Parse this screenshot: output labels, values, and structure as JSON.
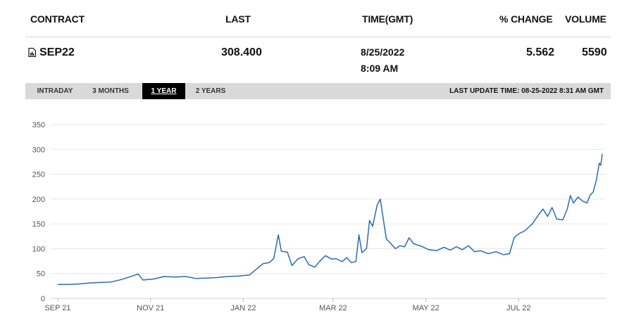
{
  "headers": {
    "contract": "CONTRACT",
    "last": "LAST",
    "time": "TIME(GMT)",
    "change": "% CHANGE",
    "volume": "VOLUME"
  },
  "row": {
    "contract": "SEP22",
    "last": "308.400",
    "date": "8/25/2022",
    "time": "8:09 AM",
    "change": "5.562",
    "volume": "5590",
    "icon": "document-icon"
  },
  "tabs": [
    "INTRADAY",
    "3 MONTHS",
    "1 YEAR",
    "2 YEARS"
  ],
  "active_tab": "1 YEAR",
  "last_update": "LAST UPDATE TIME: 08-25-2022 8:31 AM GMT",
  "colors": {
    "line": "#2b6cb0",
    "grid": "#e6e6e6",
    "tabbar": "#d9d9d9"
  },
  "chart_data": {
    "type": "line",
    "title": "",
    "xlabel": "",
    "ylabel": "",
    "ylim": [
      0,
      350
    ],
    "y_ticks": [
      0,
      50,
      100,
      150,
      200,
      250,
      300,
      350
    ],
    "x_ticks": [
      {
        "label": "SEP 21",
        "date": "2021-09-01"
      },
      {
        "label": "NOV 21",
        "date": "2021-11-01"
      },
      {
        "label": "JAN 22",
        "date": "2022-01-01"
      },
      {
        "label": "MAR 22",
        "date": "2022-03-01"
      },
      {
        "label": "MAY 22",
        "date": "2022-05-01"
      },
      {
        "label": "JUL 22",
        "date": "2022-07-01"
      }
    ],
    "grid": true,
    "series": [
      {
        "name": "",
        "points": [
          [
            "2021-09-01",
            28
          ],
          [
            "2021-09-08",
            28
          ],
          [
            "2021-09-15",
            29
          ],
          [
            "2021-09-22",
            31
          ],
          [
            "2021-09-29",
            32
          ],
          [
            "2021-10-06",
            33
          ],
          [
            "2021-10-13",
            38
          ],
          [
            "2021-10-20",
            45
          ],
          [
            "2021-10-24",
            49
          ],
          [
            "2021-10-27",
            37
          ],
          [
            "2021-11-03",
            39
          ],
          [
            "2021-11-10",
            44
          ],
          [
            "2021-11-17",
            43
          ],
          [
            "2021-11-24",
            44
          ],
          [
            "2021-12-01",
            40
          ],
          [
            "2021-12-08",
            41
          ],
          [
            "2021-12-15",
            42
          ],
          [
            "2021-12-22",
            44
          ],
          [
            "2021-12-29",
            45
          ],
          [
            "2022-01-05",
            47
          ],
          [
            "2022-01-10",
            60
          ],
          [
            "2022-01-14",
            70
          ],
          [
            "2022-01-18",
            72
          ],
          [
            "2022-01-21",
            80
          ],
          [
            "2022-01-24",
            128
          ],
          [
            "2022-01-26",
            95
          ],
          [
            "2022-01-30",
            93
          ],
          [
            "2022-02-02",
            66
          ],
          [
            "2022-02-06",
            80
          ],
          [
            "2022-02-10",
            84
          ],
          [
            "2022-02-13",
            68
          ],
          [
            "2022-02-17",
            63
          ],
          [
            "2022-02-20",
            74
          ],
          [
            "2022-02-24",
            86
          ],
          [
            "2022-02-28",
            79
          ],
          [
            "2022-03-03",
            80
          ],
          [
            "2022-03-07",
            74
          ],
          [
            "2022-03-10",
            82
          ],
          [
            "2022-03-13",
            72
          ],
          [
            "2022-03-16",
            74
          ],
          [
            "2022-03-18",
            128
          ],
          [
            "2022-03-20",
            92
          ],
          [
            "2022-03-23",
            100
          ],
          [
            "2022-03-25",
            157
          ],
          [
            "2022-03-27",
            145
          ],
          [
            "2022-03-30",
            188
          ],
          [
            "2022-04-01",
            200
          ],
          [
            "2022-04-03",
            160
          ],
          [
            "2022-04-05",
            120
          ],
          [
            "2022-04-08",
            110
          ],
          [
            "2022-04-11",
            100
          ],
          [
            "2022-04-14",
            106
          ],
          [
            "2022-04-17",
            104
          ],
          [
            "2022-04-20",
            122
          ],
          [
            "2022-04-23",
            110
          ],
          [
            "2022-04-28",
            105
          ],
          [
            "2022-05-03",
            98
          ],
          [
            "2022-05-08",
            96
          ],
          [
            "2022-05-13",
            103
          ],
          [
            "2022-05-17",
            97
          ],
          [
            "2022-05-21",
            104
          ],
          [
            "2022-05-25",
            98
          ],
          [
            "2022-05-29",
            106
          ],
          [
            "2022-06-02",
            94
          ],
          [
            "2022-06-06",
            96
          ],
          [
            "2022-06-11",
            90
          ],
          [
            "2022-06-16",
            94
          ],
          [
            "2022-06-21",
            88
          ],
          [
            "2022-06-25",
            90
          ],
          [
            "2022-06-28",
            122
          ],
          [
            "2022-07-01",
            130
          ],
          [
            "2022-07-05",
            136
          ],
          [
            "2022-07-10",
            150
          ],
          [
            "2022-07-14",
            168
          ],
          [
            "2022-07-17",
            180
          ],
          [
            "2022-07-20",
            165
          ],
          [
            "2022-07-23",
            183
          ],
          [
            "2022-07-26",
            160
          ],
          [
            "2022-07-30",
            158
          ],
          [
            "2022-08-02",
            180
          ],
          [
            "2022-08-04",
            207
          ],
          [
            "2022-08-06",
            192
          ],
          [
            "2022-08-09",
            204
          ],
          [
            "2022-08-12",
            196
          ],
          [
            "2022-08-15",
            192
          ],
          [
            "2022-08-17",
            208
          ],
          [
            "2022-08-19",
            214
          ],
          [
            "2022-08-21",
            237
          ],
          [
            "2022-08-23",
            272
          ],
          [
            "2022-08-24",
            268
          ],
          [
            "2022-08-25",
            291
          ]
        ]
      }
    ]
  }
}
